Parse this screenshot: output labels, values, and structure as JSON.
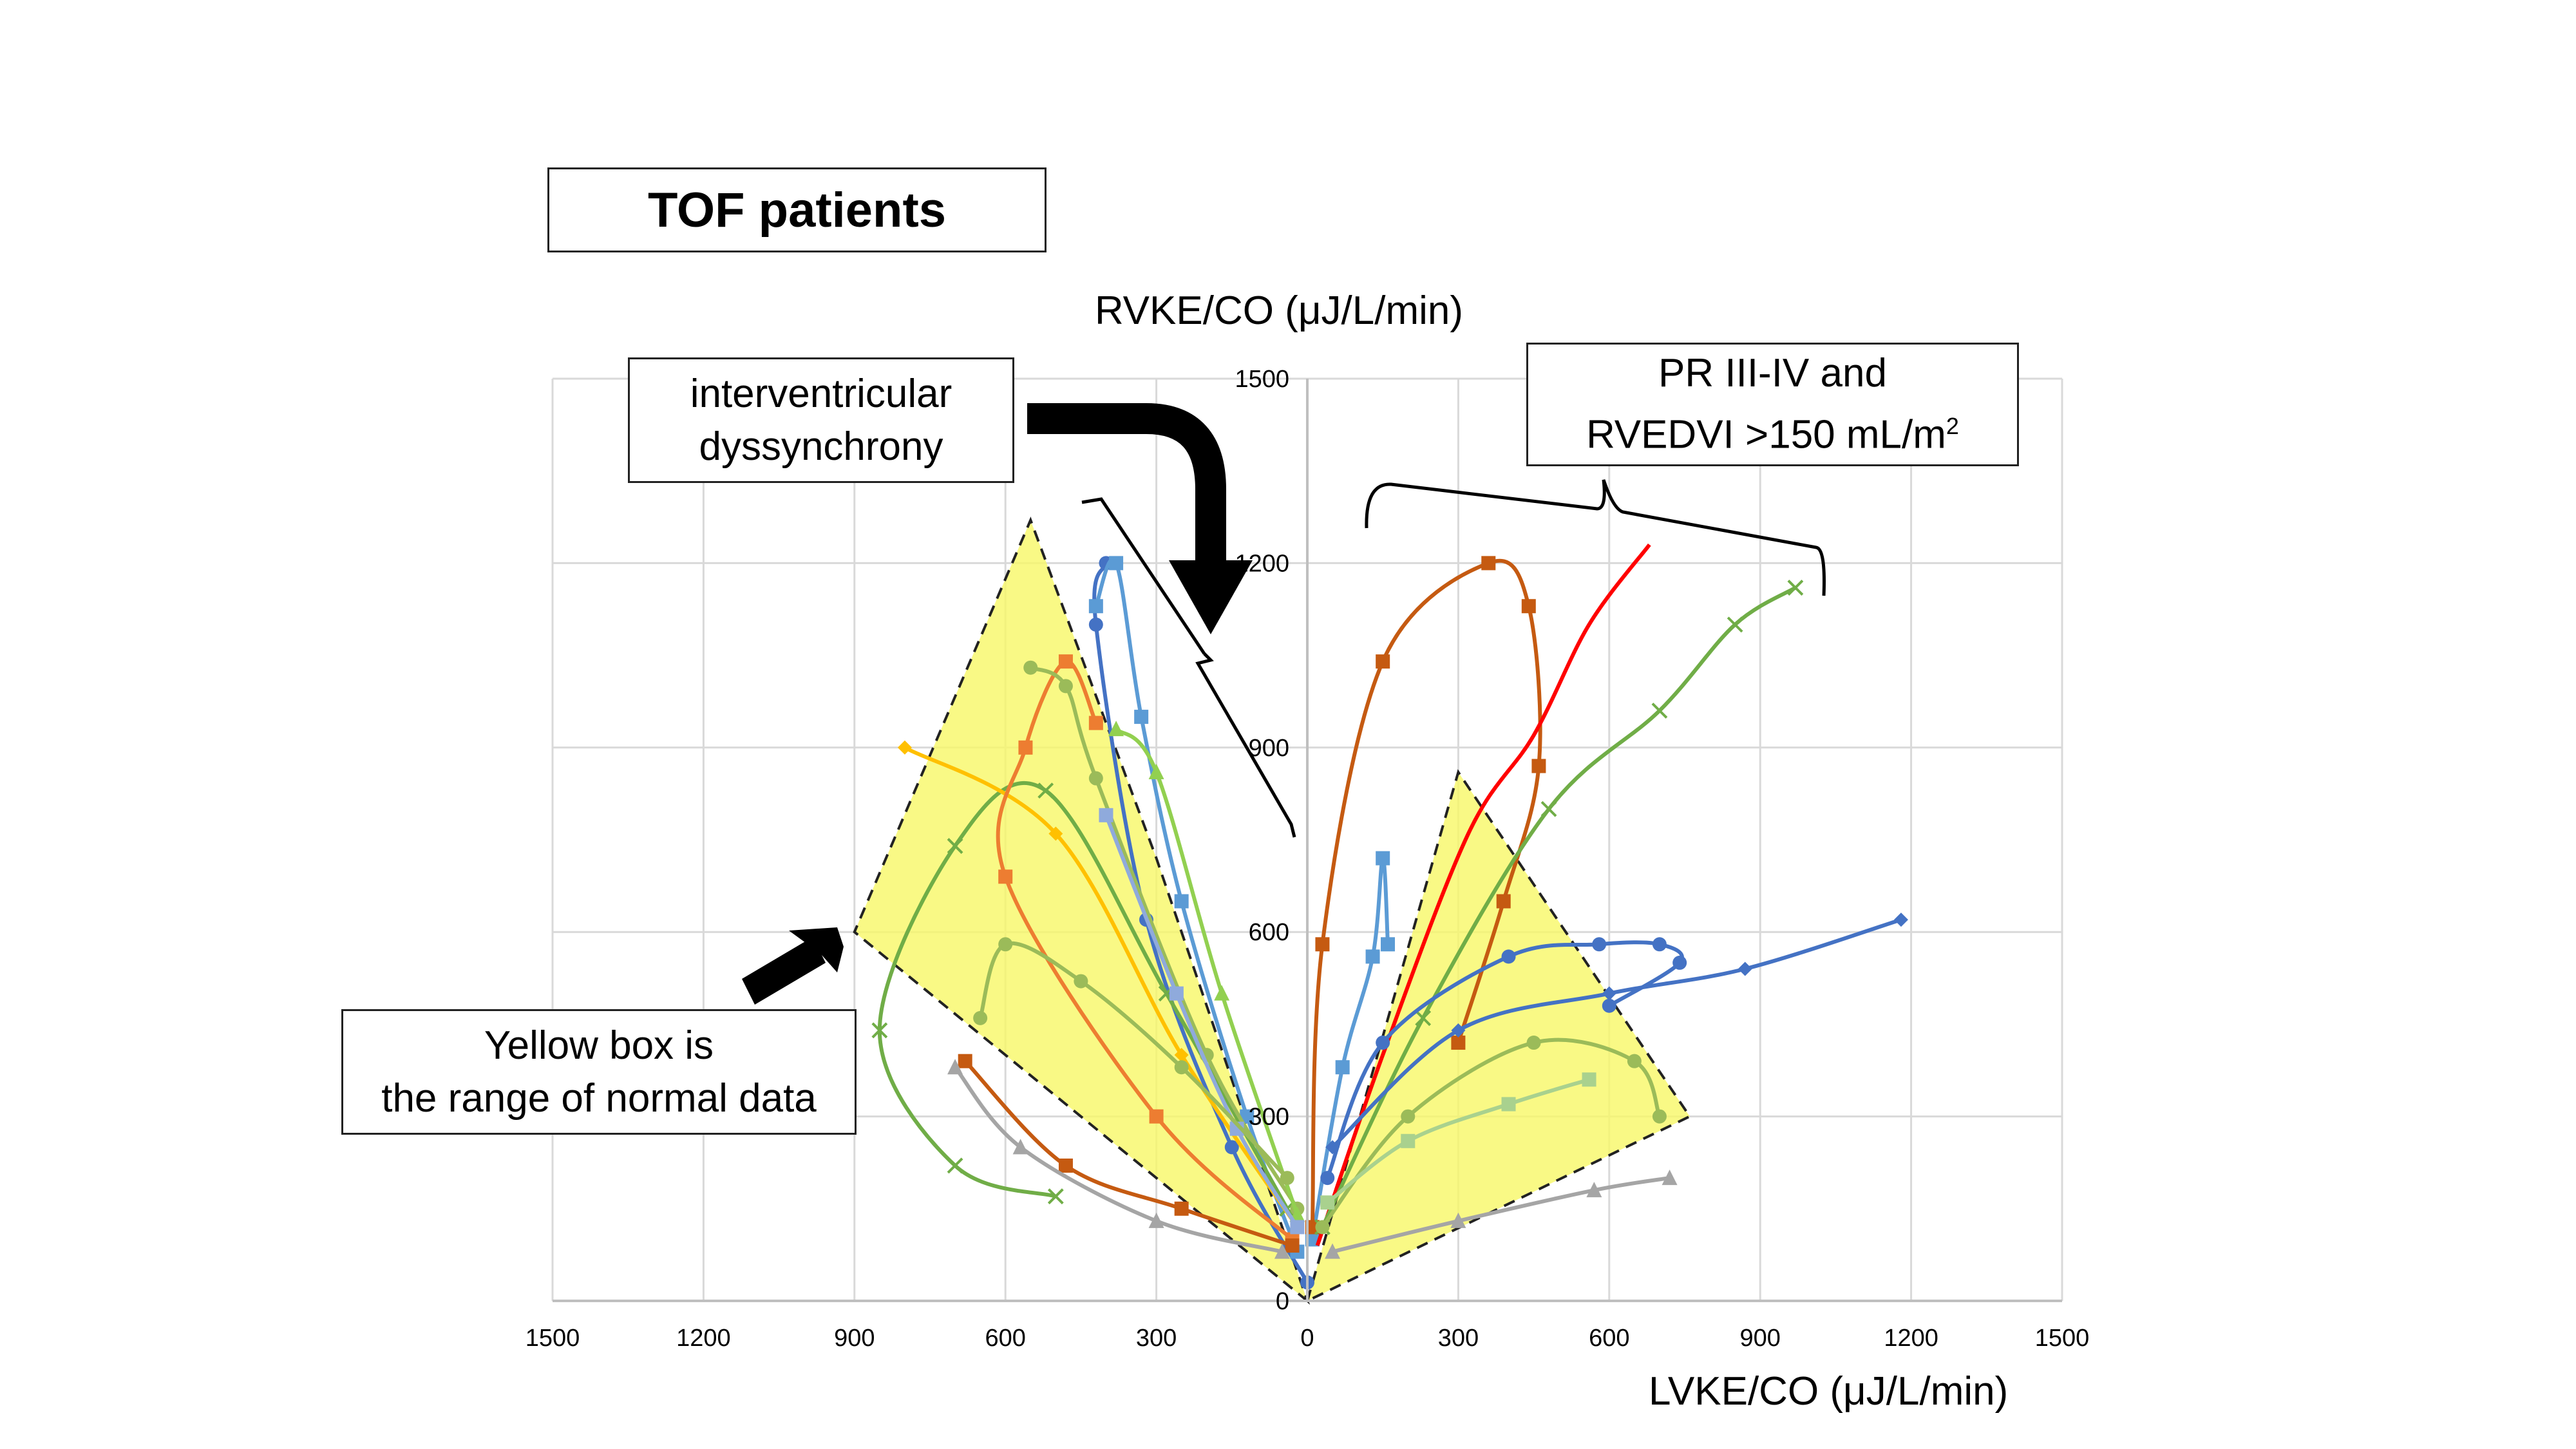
{
  "title": "TOF patients",
  "annotations": {
    "interventricular_line1": "interventricular",
    "interventricular_line2": "dyssynchrony",
    "pr_line1": "PR III-IV and",
    "pr_line2_main": "RVEDVI >150 mL/m",
    "pr_line2_sup": "2",
    "yellow_line1": "Yellow box is",
    "yellow_line2": "the range of normal data"
  },
  "colors": {
    "normal_range_fill": "#f8f86a",
    "grid": "#d9d9d9",
    "arrow": "#000000"
  },
  "chart_data": {
    "type": "line",
    "xlabel": "LVKE/CO (μJ/L/min)",
    "ylabel": "RVKE/CO (μJ/L/min)",
    "xlim": [
      -1500,
      1500
    ],
    "ylim": [
      0,
      1500
    ],
    "x_ticks": [
      -1500,
      -1200,
      -900,
      -600,
      -300,
      0,
      300,
      600,
      900,
      1200,
      1500
    ],
    "x_tick_labels": [
      "1500",
      "1200",
      "900",
      "600",
      "300",
      "0",
      "300",
      "600",
      "900",
      "1200",
      "1500"
    ],
    "y_ticks": [
      0,
      300,
      600,
      900,
      1200,
      1500
    ],
    "y_tick_labels": [
      "0",
      "300",
      "600",
      "900",
      "1200",
      "1500"
    ],
    "grid": true,
    "normal_range_regions": [
      [
        [
          0,
          0
        ],
        [
          -900,
          600
        ],
        [
          -550,
          1270
        ],
        [
          -300,
          720
        ]
      ],
      [
        [
          0,
          0
        ],
        [
          300,
          860
        ],
        [
          760,
          300
        ]
      ]
    ],
    "series": [
      {
        "color": "#4472c4",
        "marker": "circle",
        "values": [
          [
            0,
            30
          ],
          [
            -150,
            250
          ],
          [
            -320,
            620
          ],
          [
            -420,
            1100
          ],
          [
            -400,
            1200
          ]
        ]
      },
      {
        "color": "#5b9bd5",
        "marker": "square",
        "values": [
          [
            -20,
            80
          ],
          [
            -120,
            300
          ],
          [
            -250,
            650
          ],
          [
            -330,
            950
          ],
          [
            -380,
            1200
          ],
          [
            -420,
            1130
          ]
        ]
      },
      {
        "color": "#5b9bd5",
        "marker": "square",
        "values": [
          [
            10,
            100
          ],
          [
            70,
            380
          ],
          [
            130,
            560
          ],
          [
            150,
            720
          ],
          [
            160,
            580
          ]
        ]
      },
      {
        "color": "#c55a11",
        "marker": "square",
        "values": [
          [
            10,
            120
          ],
          [
            30,
            580
          ],
          [
            150,
            1040
          ],
          [
            360,
            1200
          ],
          [
            440,
            1130
          ],
          [
            460,
            870
          ],
          [
            390,
            650
          ],
          [
            300,
            420
          ]
        ]
      },
      {
        "color": "#ff0000",
        "marker": "none",
        "values": [
          [
            20,
            90
          ],
          [
            150,
            400
          ],
          [
            320,
            760
          ],
          [
            450,
            920
          ],
          [
            560,
            1100
          ],
          [
            680,
            1230
          ]
        ]
      },
      {
        "color": "#70ad47",
        "marker": "x",
        "values": [
          [
            30,
            120
          ],
          [
            230,
            460
          ],
          [
            480,
            800
          ],
          [
            700,
            960
          ],
          [
            850,
            1100
          ],
          [
            970,
            1160
          ]
        ]
      },
      {
        "color": "#4472c4",
        "marker": "circle",
        "values": [
          [
            40,
            200
          ],
          [
            150,
            420
          ],
          [
            400,
            560
          ],
          [
            580,
            580
          ],
          [
            700,
            580
          ],
          [
            740,
            550
          ],
          [
            600,
            480
          ]
        ]
      },
      {
        "color": "#4472c4",
        "marker": "diamond",
        "values": [
          [
            50,
            250
          ],
          [
            300,
            440
          ],
          [
            600,
            500
          ],
          [
            870,
            540
          ],
          [
            1180,
            620
          ]
        ]
      },
      {
        "color": "#70ad47",
        "marker": "x",
        "values": [
          [
            -40,
            150
          ],
          [
            -280,
            500
          ],
          [
            -520,
            830
          ],
          [
            -700,
            740
          ],
          [
            -850,
            440
          ],
          [
            -700,
            220
          ],
          [
            -500,
            170
          ]
        ]
      },
      {
        "color": "#ffc000",
        "marker": "diamond",
        "values": [
          [
            -20,
            120
          ],
          [
            -250,
            400
          ],
          [
            -500,
            760
          ],
          [
            -800,
            900
          ]
        ]
      },
      {
        "color": "#ed7d31",
        "marker": "square",
        "values": [
          [
            -30,
            100
          ],
          [
            -300,
            300
          ],
          [
            -600,
            690
          ],
          [
            -560,
            900
          ],
          [
            -480,
            1040
          ],
          [
            -420,
            940
          ]
        ]
      },
      {
        "color": "#c55a11",
        "marker": "square",
        "values": [
          [
            -30,
            90
          ],
          [
            -250,
            150
          ],
          [
            -480,
            220
          ],
          [
            -680,
            390
          ]
        ]
      },
      {
        "color": "#a5a5a5",
        "marker": "triangle",
        "values": [
          [
            -50,
            80
          ],
          [
            -300,
            130
          ],
          [
            -570,
            250
          ],
          [
            -700,
            380
          ]
        ]
      },
      {
        "color": "#a5a5a5",
        "marker": "triangle",
        "values": [
          [
            50,
            80
          ],
          [
            300,
            130
          ],
          [
            570,
            180
          ],
          [
            720,
            200
          ]
        ]
      },
      {
        "color": "#9bbb59",
        "marker": "circle",
        "values": [
          [
            -20,
            150
          ],
          [
            -200,
            400
          ],
          [
            -420,
            850
          ],
          [
            -480,
            1000
          ],
          [
            -550,
            1030
          ]
        ]
      },
      {
        "color": "#92d050",
        "marker": "triangle",
        "values": [
          [
            -20,
            140
          ],
          [
            -170,
            500
          ],
          [
            -300,
            860
          ],
          [
            -380,
            930
          ]
        ]
      },
      {
        "color": "#8faadc",
        "marker": "square",
        "values": [
          [
            -20,
            120
          ],
          [
            -140,
            280
          ],
          [
            -260,
            500
          ],
          [
            -400,
            790
          ]
        ]
      },
      {
        "color": "#9bbb59",
        "marker": "circle",
        "values": [
          [
            30,
            120
          ],
          [
            200,
            300
          ],
          [
            450,
            420
          ],
          [
            650,
            390
          ],
          [
            700,
            300
          ]
        ]
      },
      {
        "color": "#9bbb59",
        "marker": "circle",
        "values": [
          [
            -40,
            200
          ],
          [
            -250,
            380
          ],
          [
            -450,
            520
          ],
          [
            -600,
            580
          ],
          [
            -650,
            460
          ]
        ]
      },
      {
        "color": "#a9d18e",
        "marker": "square",
        "values": [
          [
            40,
            160
          ],
          [
            200,
            260
          ],
          [
            400,
            320
          ],
          [
            560,
            360
          ]
        ]
      }
    ]
  }
}
